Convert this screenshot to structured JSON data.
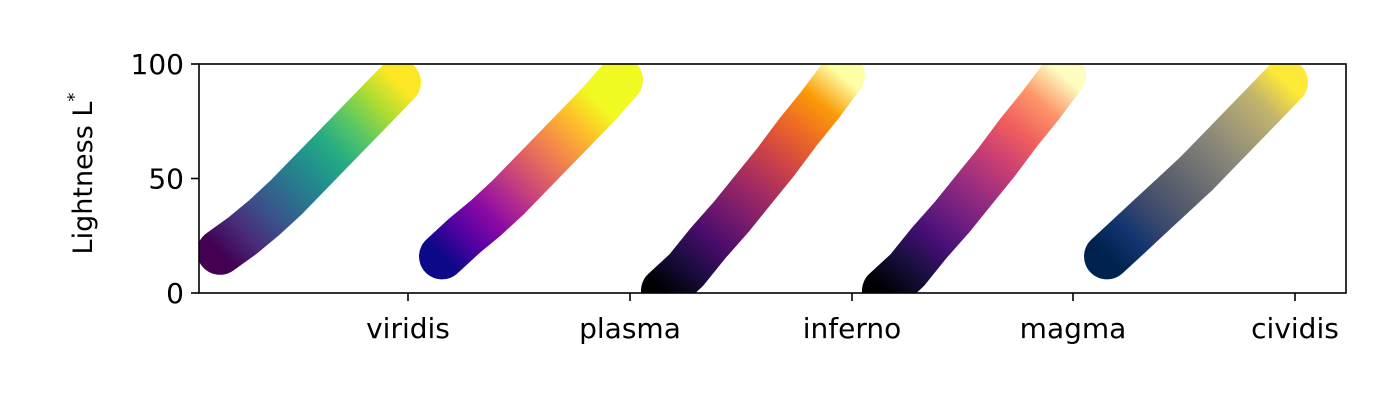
{
  "chart_data": {
    "type": "scatter",
    "title": "",
    "xlabel": "",
    "ylabel": "Lightness L",
    "ylabel_superscript": "*",
    "ylim": [
      0,
      100
    ],
    "yticks": [
      0,
      50,
      100
    ],
    "grid": false,
    "categories": [
      "viridis",
      "plasma",
      "inferno",
      "magma",
      "cividis"
    ],
    "series": [
      {
        "name": "viridis",
        "lightness": [
          18,
          25,
          33,
          42,
          52,
          62,
          72,
          82,
          92
        ],
        "colors": [
          "#440154",
          "#472c7a",
          "#3b518b",
          "#2c718e",
          "#21908d",
          "#27ad81",
          "#5cc863",
          "#aadc32",
          "#fde725"
        ]
      },
      {
        "name": "plasma",
        "lightness": [
          16,
          25,
          33,
          42,
          52,
          62,
          72,
          82,
          93
        ],
        "colors": [
          "#0d0887",
          "#5302a3",
          "#8b0aa5",
          "#b83289",
          "#db5c68",
          "#f48849",
          "#febd2a",
          "#f0f921",
          "#f0f921"
        ]
      },
      {
        "name": "inferno",
        "lightness": [
          1,
          10,
          22,
          33,
          45,
          57,
          70,
          82,
          95
        ],
        "colors": [
          "#000004",
          "#1b0c41",
          "#4a0c6b",
          "#781c6d",
          "#a52c60",
          "#cf4446",
          "#ed6925",
          "#fb9b06",
          "#fcffa4"
        ]
      },
      {
        "name": "magma",
        "lightness": [
          1,
          10,
          22,
          33,
          45,
          57,
          70,
          82,
          95
        ],
        "colors": [
          "#000004",
          "#180f3d",
          "#440f76",
          "#721f81",
          "#9e2f7f",
          "#cd4071",
          "#f1605d",
          "#fd9668",
          "#fcfdbf"
        ]
      },
      {
        "name": "cividis",
        "lightness": [
          16,
          25,
          34,
          43,
          52,
          62,
          72,
          82,
          92
        ],
        "colors": [
          "#00224e",
          "#123570",
          "#3b496c",
          "#575d6d",
          "#707173",
          "#8a8779",
          "#a69d75",
          "#c4b56c",
          "#fee838"
        ]
      }
    ]
  }
}
